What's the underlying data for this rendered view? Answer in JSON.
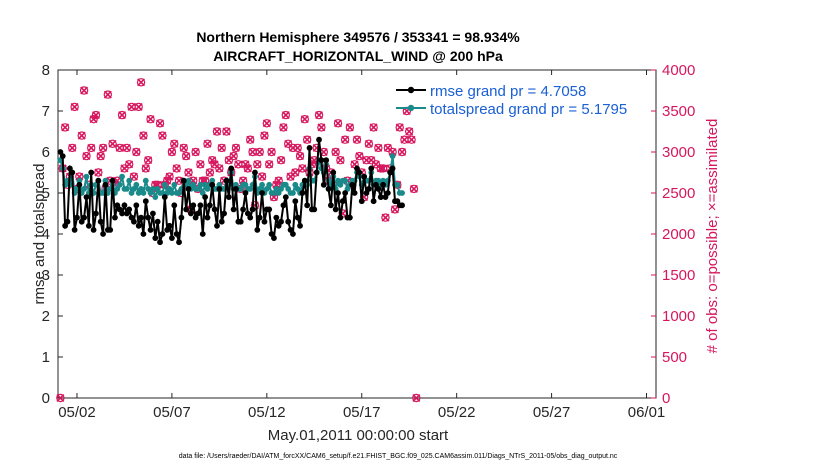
{
  "chart_data": {
    "type": "line",
    "title_line1": "Northern Hemisphere 349576 / 353341 = 98.934%",
    "title_line2": "AIRCRAFT_HORIZONTAL_WIND @ 200 hPa",
    "xlabel": "May.01,2011 00:00:00 start",
    "ylabel_left": "rmse and totalspread",
    "ylabel_right": "# of obs: o=possible; ×=assimilated",
    "footer": "data file: /Users/raeder/DAI/ATM_forcXX/CAM6_setup/f.e21.FHIST_BGC.f09_025.CAM6assim.011/Diags_NTrS_2011-05/obs_diag_output.nc",
    "x_range": [
      0,
      31.5
    ],
    "ylim_left": [
      0,
      8
    ],
    "ylim_right": [
      0,
      4000
    ],
    "x_ticks": [
      {
        "day": 1,
        "label": "05/02"
      },
      {
        "day": 6,
        "label": "05/07"
      },
      {
        "day": 11,
        "label": "05/12"
      },
      {
        "day": 16,
        "label": "05/17"
      },
      {
        "day": 21,
        "label": "05/22"
      },
      {
        "day": 26,
        "label": "05/27"
      },
      {
        "day": 31,
        "label": "06/01"
      }
    ],
    "y_ticks_left": [
      "0",
      "1",
      "2",
      "3",
      "4",
      "5",
      "6",
      "7",
      "8"
    ],
    "y_ticks_right": [
      "0",
      "500",
      "1000",
      "1500",
      "2000",
      "2500",
      "3000",
      "3500",
      "4000"
    ],
    "bin_hours": 3,
    "series": [
      {
        "name": "rmse grand pr = 4.7058",
        "color": "#000000",
        "axis": "left",
        "x_start": 0.125,
        "values": [
          6.0,
          5.9,
          4.2,
          4.3,
          5.6,
          5.5,
          4.1,
          4.4,
          5.2,
          4.3,
          4.4,
          4.9,
          4.2,
          5.5,
          4.1,
          4.5,
          5.3,
          4.3,
          4.0,
          5.2,
          4.1,
          4.1,
          5.3,
          4.4,
          4.7,
          4.6,
          4.5,
          4.7,
          4.5,
          4.6,
          4.4,
          4.3,
          4.7,
          4.2,
          4.4,
          4.0,
          4.8,
          4.4,
          4.1,
          4.5,
          3.9,
          4.3,
          3.8,
          4.0,
          4.9,
          4.1,
          4.2,
          3.9,
          4.7,
          4.0,
          3.8,
          4.4,
          5.3,
          4.6,
          5.1,
          4.5,
          4.7,
          4.4,
          4.5,
          4.7,
          4.0,
          4.9,
          4.4,
          4.7,
          5.2,
          4.6,
          4.2,
          5.1,
          4.3,
          4.5,
          5.3,
          4.9,
          5.6,
          4.6,
          5.1,
          4.3,
          4.3,
          4.6,
          5.0,
          4.5,
          4.4,
          4.6,
          5.5,
          4.1,
          4.4,
          5.0,
          4.3,
          4.6,
          4.6,
          4.0,
          3.9,
          4.4,
          4.2,
          4.3,
          4.7,
          4.9,
          4.3,
          4.1,
          4.0,
          4.8,
          4.4,
          4.2,
          5.0,
          5.3,
          4.7,
          6.1,
          4.6,
          4.6,
          5.5,
          6.3,
          5.8,
          5.2,
          5.8,
          5.1,
          4.7,
          5.5,
          4.6,
          5.0,
          4.4,
          4.8,
          5.0,
          4.4,
          4.4,
          5.2,
          5.0,
          5.6,
          5.5,
          4.8,
          5.4,
          5.0,
          5.1,
          5.6,
          4.8,
          5.2,
          5.1,
          4.9,
          5.2,
          4.9,
          5.0,
          5.5,
          5.6,
          4.8,
          4.8,
          4.7,
          4.7
        ]
      },
      {
        "name": "totalspread grand pr = 5.1795",
        "color": "#1a8a8a",
        "axis": "left",
        "x_start": 0.125,
        "values": [
          5.8,
          5.6,
          5.2,
          5.3,
          5.2,
          5.5,
          5.0,
          5.1,
          5.3,
          5.0,
          5.1,
          5.4,
          5.0,
          5.2,
          5.0,
          5.2,
          5.3,
          5.0,
          5.0,
          5.3,
          5.0,
          5.1,
          5.2,
          5.0,
          5.1,
          5.2,
          5.4,
          5.1,
          5.1,
          5.3,
          5.0,
          5.1,
          5.2,
          5.0,
          5.1,
          5.0,
          5.3,
          5.1,
          5.0,
          5.1,
          4.9,
          5.1,
          5.0,
          5.0,
          5.2,
          5.0,
          5.1,
          5.0,
          5.2,
          5.0,
          5.0,
          5.1,
          5.3,
          5.2,
          5.3,
          5.1,
          5.2,
          5.1,
          5.1,
          5.2,
          5.0,
          5.2,
          5.1,
          5.2,
          5.3,
          5.1,
          5.1,
          5.2,
          5.1,
          5.1,
          5.3,
          5.2,
          5.5,
          5.1,
          5.2,
          5.1,
          5.1,
          5.2,
          5.2,
          5.1,
          5.1,
          5.2,
          5.4,
          5.0,
          5.1,
          5.2,
          5.0,
          5.1,
          5.2,
          5.0,
          5.0,
          5.1,
          5.0,
          5.1,
          5.2,
          5.2,
          5.1,
          5.0,
          5.0,
          5.2,
          5.1,
          5.0,
          5.2,
          5.3,
          5.2,
          5.6,
          5.3,
          5.3,
          5.5,
          5.8,
          5.6,
          5.5,
          5.7,
          5.3,
          5.2,
          5.4,
          5.1,
          5.3,
          5.2,
          5.3,
          5.3,
          5.1,
          5.2,
          5.3,
          5.3,
          5.5,
          5.4,
          5.2,
          5.4,
          5.3,
          5.3,
          5.5,
          5.2,
          5.3,
          5.3,
          5.2,
          5.3,
          5.2,
          5.3,
          5.5,
          5.9,
          5.2,
          5.2,
          5.0,
          5.0
        ]
      },
      {
        "name": "# of obs",
        "color": "#d6175e",
        "axis": "right",
        "x_start": 0.125,
        "values": [
          0,
          2800,
          3300,
          2600,
          2700,
          3050,
          3550,
          2550,
          2700,
          3200,
          3750,
          2950,
          2600,
          3050,
          3400,
          3450,
          2750,
          2950,
          3050,
          2550,
          3700,
          2650,
          3100,
          2600,
          2650,
          3050,
          3450,
          2800,
          3050,
          2850,
          3550,
          2700,
          3000,
          3550,
          3850,
          3200,
          2800,
          2900,
          3400,
          2500,
          2600,
          2600,
          3350,
          3200,
          2600,
          2650,
          2700,
          3000,
          3100,
          2800,
          2650,
          2500,
          3050,
          2950,
          2750,
          2300,
          2650,
          3000,
          2550,
          2850,
          2650,
          2650,
          3100,
          2750,
          2900,
          2850,
          3250,
          2800,
          3050,
          2650,
          3250,
          2900,
          2750,
          2950,
          3050,
          2850,
          2550,
          2650,
          2850,
          2800,
          3150,
          3000,
          2350,
          2850,
          3000,
          2700,
          3200,
          3350,
          2850,
          3000,
          2450,
          2600,
          2650,
          2900,
          3300,
          3450,
          3100,
          2700,
          3050,
          2750,
          3050,
          2950,
          2800,
          3400,
          3150,
          2750,
          2850,
          2900,
          3050,
          3450,
          3300,
          3000,
          2800,
          2650,
          2750,
          2600,
          3000,
          3350,
          2900,
          2250,
          3150,
          2650,
          3300,
          2600,
          2850,
          3150,
          2950,
          2750,
          2450,
          2900,
          3100,
          2900,
          3300,
          2850,
          3050,
          2800,
          2800,
          2200,
          3050,
          2800,
          3000,
          2300,
          2600,
          3300,
          3000,
          3150,
          3500,
          3250,
          3150,
          2550,
          0
        ]
      }
    ],
    "legend": [
      "rmse grand pr = 4.7058",
      "totalspread grand pr = 5.1795"
    ]
  }
}
